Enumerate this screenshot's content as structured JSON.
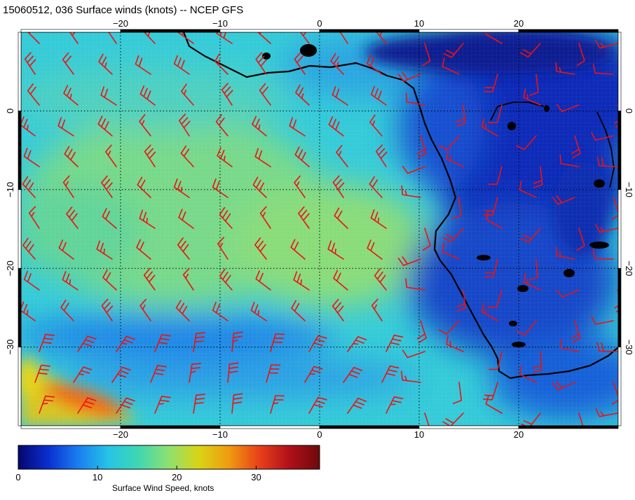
{
  "title": "15060512, 036 Surface winds (knots) -- NCEP GFS",
  "map": {
    "lon_range": [
      -30,
      30
    ],
    "lat_range": [
      -40,
      10
    ],
    "lon_ticks": [
      -20,
      -10,
      0,
      10,
      20
    ],
    "lat_ticks": [
      0,
      -10,
      -20,
      -30
    ],
    "lon_tick_labels": [
      "−20",
      "−10",
      "0",
      "10",
      "20"
    ],
    "lat_tick_labels": [
      "0",
      "−10",
      "−20",
      "−30"
    ],
    "gridlines": true,
    "barb_color": "#ee1111",
    "coast_color": "#000000"
  },
  "colorbar": {
    "title": "Surface Wind Speed, knots",
    "range": [
      0,
      38
    ],
    "tick_values": [
      0,
      10,
      20,
      30
    ],
    "tick_labels": [
      "0",
      "10",
      "20",
      "30"
    ],
    "colors": [
      "#06066e",
      "#0a2fd0",
      "#1a7ff0",
      "#26c4e6",
      "#3fd8b0",
      "#8ee070",
      "#d9d414",
      "#f09a10",
      "#e8401a",
      "#b0101a",
      "#6e0a0a"
    ]
  }
}
